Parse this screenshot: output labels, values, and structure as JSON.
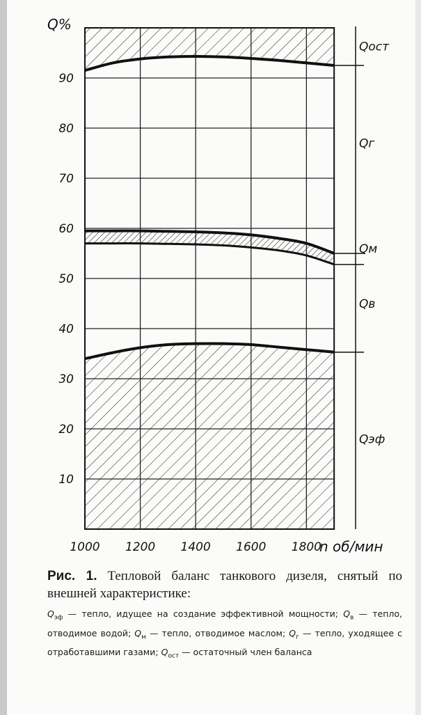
{
  "chart_data": {
    "type": "area",
    "ylabel": "Q%",
    "xlabel": "n об/мин",
    "x": [
      1000,
      1100,
      1200,
      1300,
      1400,
      1500,
      1600,
      1700,
      1800,
      1900
    ],
    "x_ticks": [
      1000,
      1200,
      1400,
      1600,
      1800
    ],
    "x_tick_labels": [
      "1000",
      "1200",
      "1400",
      "1600",
      "1800"
    ],
    "y_ticks": [
      10,
      20,
      30,
      40,
      50,
      60,
      70,
      80,
      90
    ],
    "y_tick_labels": [
      "10",
      "20",
      "30",
      "40",
      "50",
      "60",
      "70",
      "80",
      "90"
    ],
    "xlim": [
      1000,
      1980
    ],
    "ylim": [
      0,
      100
    ],
    "grid": true,
    "series": [
      {
        "name": "Qэф",
        "values": [
          34.0,
          35.2,
          36.2,
          36.8,
          37.0,
          37.0,
          36.8,
          36.3,
          35.8,
          35.3
        ]
      },
      {
        "name": "Qв",
        "values": [
          57.0,
          57.0,
          57.0,
          56.9,
          56.8,
          56.6,
          56.2,
          55.6,
          54.6,
          52.8
        ]
      },
      {
        "name": "Qм",
        "values": [
          59.5,
          59.5,
          59.5,
          59.4,
          59.3,
          59.1,
          58.7,
          58.0,
          57.0,
          55.0
        ]
      },
      {
        "name": "Qг",
        "values": [
          91.5,
          93.0,
          93.8,
          94.2,
          94.3,
          94.2,
          93.9,
          93.5,
          93.0,
          92.5
        ]
      },
      {
        "name": "Qост",
        "values": [
          100,
          100,
          100,
          100,
          100,
          100,
          100,
          100,
          100,
          100
        ]
      }
    ],
    "region_labels": [
      {
        "text": "Qост",
        "y": 96.3
      },
      {
        "text": "Qг",
        "y": 77
      },
      {
        "text": "Qм",
        "y": 56
      },
      {
        "text": "Qв",
        "y": 45
      },
      {
        "text": "Qэф",
        "y": 18
      }
    ]
  },
  "caption": {
    "fig_label": "Рис. 1.",
    "title": "Тепловой баланс танкового дизеля, снятый по внешней характеристике:",
    "legend_text": [
      {
        "sym": "Q",
        "sub": "эф",
        "desc": " — тепло, идущее на создание эффективной мощности; "
      },
      {
        "sym": "Q",
        "sub": "в",
        "desc": " — тепло, отводимое водой; "
      },
      {
        "sym": "Q",
        "sub": "м",
        "desc": " — тепло, отводимое маслом; "
      },
      {
        "sym": "Q",
        "sub": "г",
        "desc": " — тепло, уходящее с отработавшими газами; "
      },
      {
        "sym": "Q",
        "sub": "ост",
        "desc": " — остаточный член баланса"
      }
    ]
  }
}
